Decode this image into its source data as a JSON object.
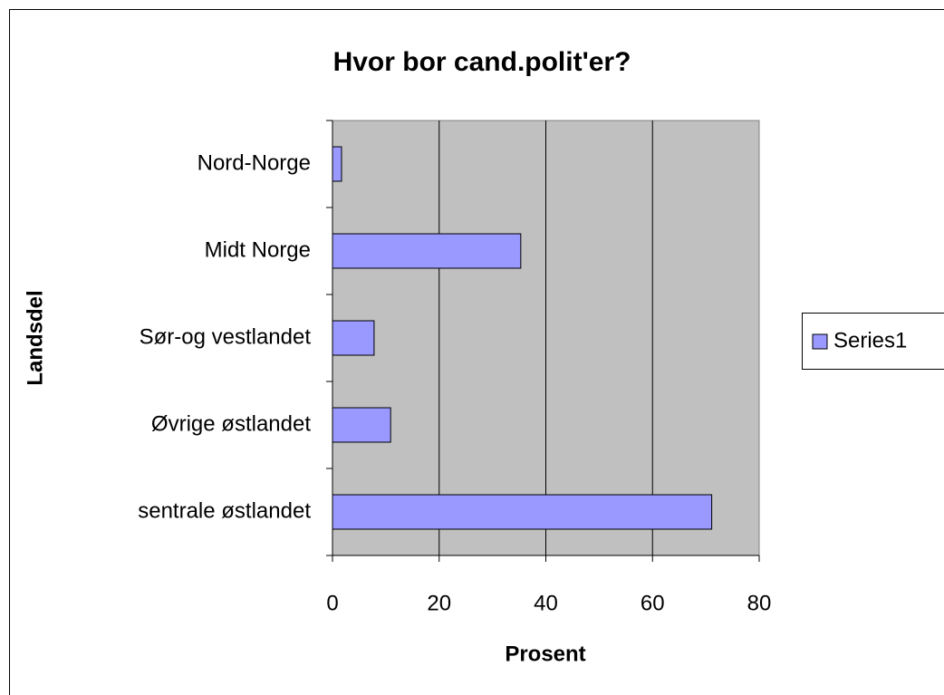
{
  "chart_data": {
    "type": "hbar",
    "title": "Hvor bor cand.polit'er?",
    "x_label": "Prosent",
    "y_label": "Landsdel",
    "categories": [
      "Nord-Norge",
      "Midt Norge",
      "Sør-og vestlandet",
      "Øvrige østlandet",
      "sentrale østlandet"
    ],
    "series": [
      {
        "name": "Series1",
        "color": "#9999ff",
        "values": [
          1.7,
          35.3,
          7.8,
          10.9,
          71.1
        ]
      }
    ],
    "xlim": [
      0,
      80
    ],
    "xticks": [
      0,
      20,
      40,
      60,
      80
    ],
    "grid": true,
    "legend": "right",
    "plot_background": "#c0c0c0"
  }
}
